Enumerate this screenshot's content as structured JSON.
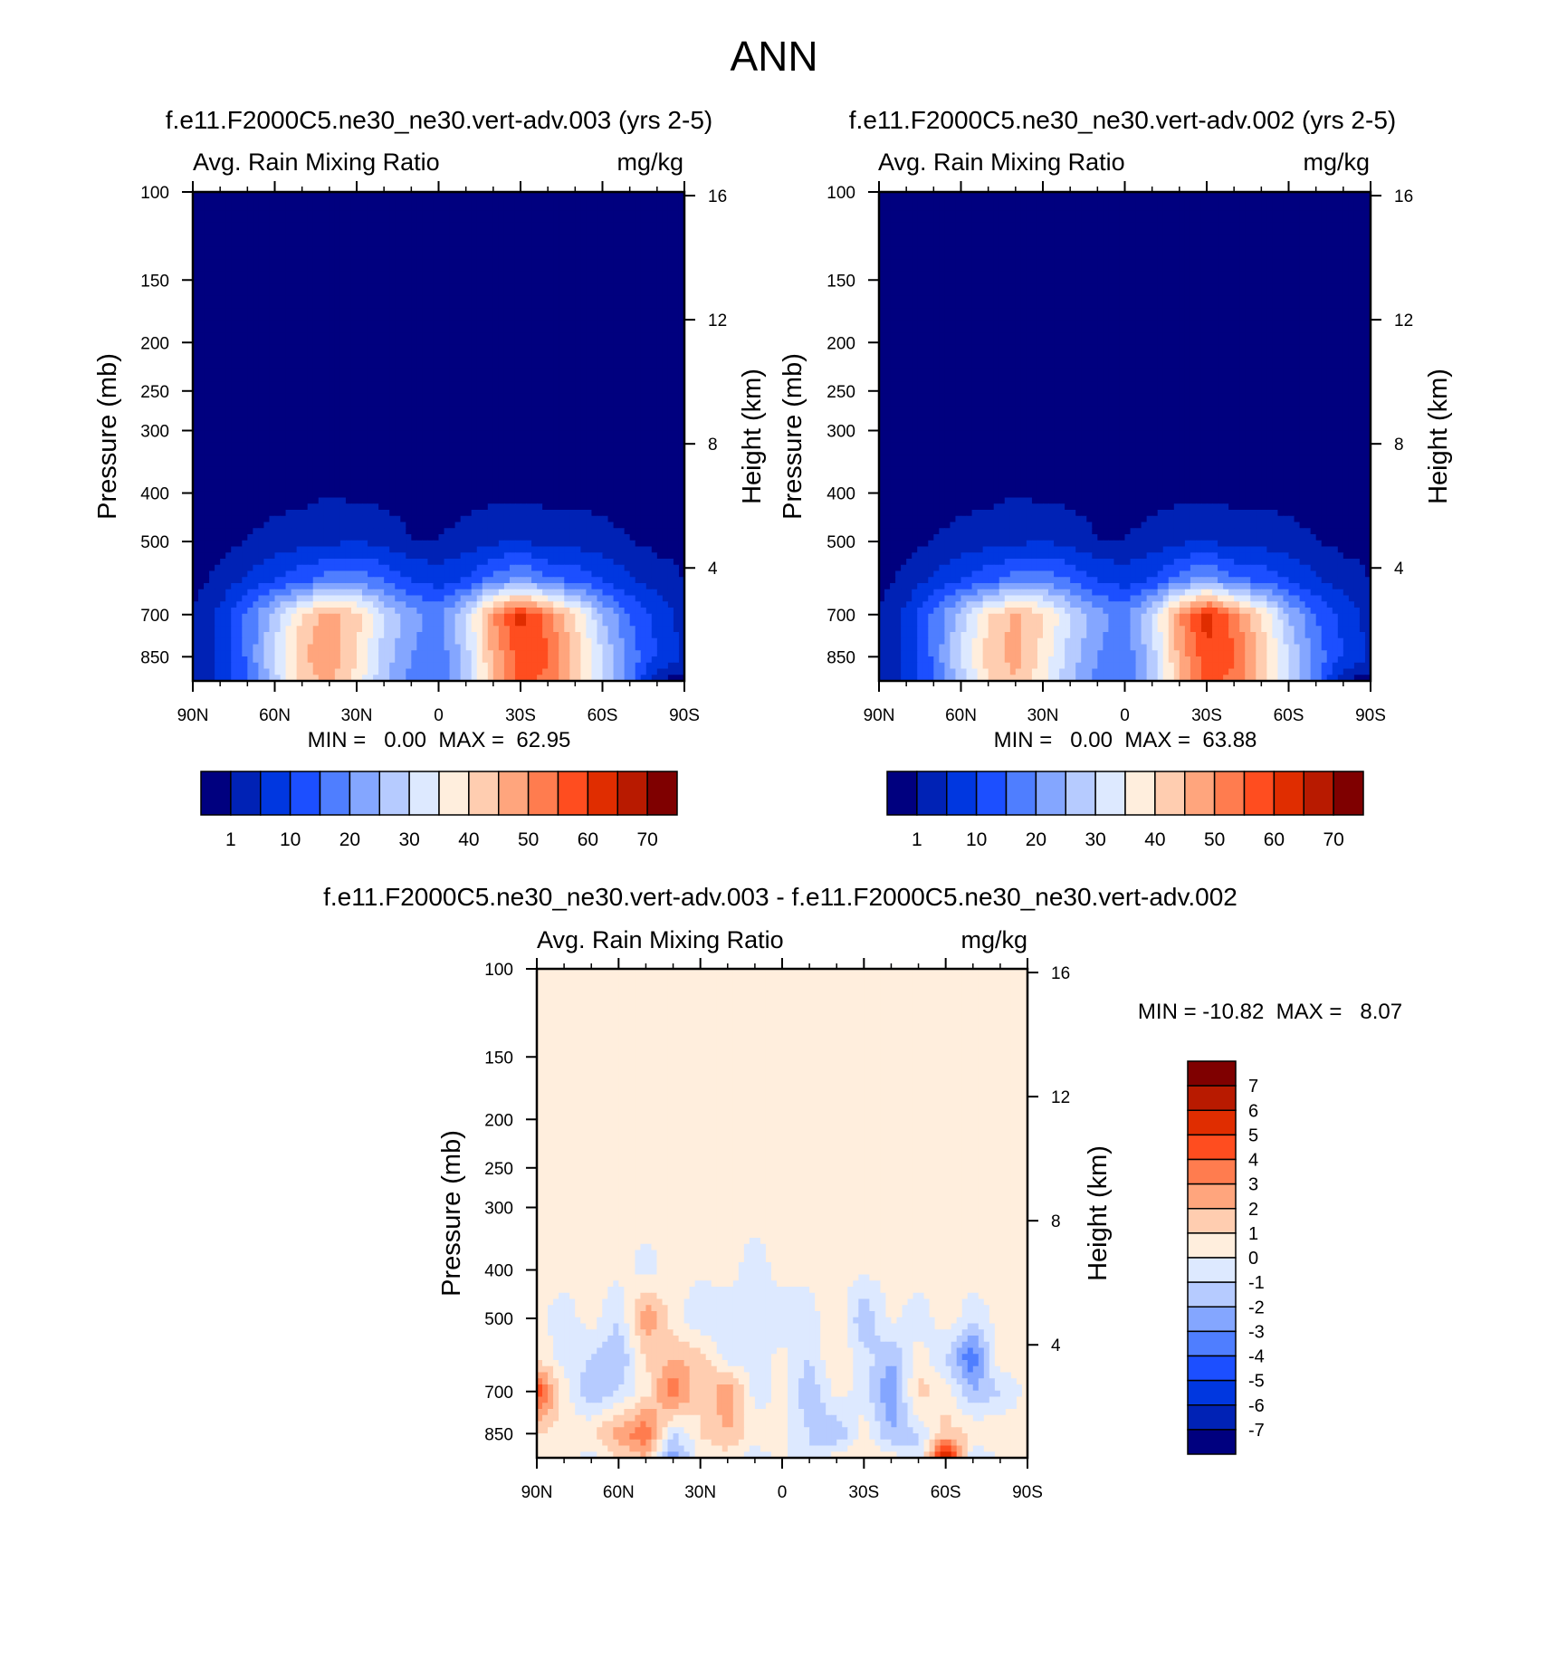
{
  "figure": {
    "title": "ANN"
  },
  "chart_data": [
    {
      "type": "heatmap",
      "title": "f.e11.F2000C5.ne30_ne30.vert-adv.003 (yrs 2-5)",
      "subtitle_left": "Avg. Rain Mixing Ratio",
      "units": "mg/kg",
      "ylabel": "Pressure (mb)",
      "y2label": "Height (km)",
      "x_ticks": [
        "90N",
        "60N",
        "30N",
        "0",
        "30S",
        "60S",
        "90S"
      ],
      "y_ticks": [
        "100",
        "150",
        "200",
        "250",
        "300",
        "400",
        "500",
        "700",
        "850"
      ],
      "y2_ticks": [
        "16",
        "12",
        "8",
        "4"
      ],
      "stats": "MIN =   0.00  MAX =  62.95",
      "colorbar_labels": [
        "1",
        "10",
        "20",
        "30",
        "40",
        "50",
        "60",
        "70"
      ],
      "colorbar_colors": [
        "#00007f",
        "#0022b5",
        "#0037e0",
        "#1c4fff",
        "#4f7eff",
        "#84a6ff",
        "#b6cbff",
        "#dde9ff",
        "#ffeedd",
        "#ffcdb0",
        "#ffa57d",
        "#ff7c4f",
        "#ff4d1f",
        "#e02d00",
        "#b81a00",
        "#7f0000"
      ],
      "lat": [
        -90,
        -80,
        -70,
        -60,
        -50,
        -40,
        -30,
        -20,
        -10,
        0,
        10,
        20,
        30,
        40,
        50,
        60,
        70,
        80,
        90
      ],
      "pressure": [
        100,
        150,
        200,
        250,
        300,
        400,
        500,
        600,
        700,
        850,
        950
      ],
      "values": [
        [
          0,
          0,
          0,
          0,
          0,
          0,
          0,
          0,
          0,
          0,
          0,
          0,
          0,
          0,
          0,
          0,
          0,
          0,
          0
        ],
        [
          0,
          0,
          0,
          0,
          0,
          0,
          0,
          0,
          0,
          0,
          0,
          0,
          0,
          0,
          0,
          0,
          0,
          0,
          0
        ],
        [
          0,
          0,
          0,
          0,
          0,
          0,
          0,
          0,
          0,
          0,
          0,
          0,
          0,
          0,
          0,
          0,
          0,
          0,
          0
        ],
        [
          0,
          0,
          0,
          0,
          0,
          0,
          0,
          0,
          0,
          0,
          0,
          0,
          0,
          0,
          0,
          0,
          0,
          0,
          0
        ],
        [
          0,
          0,
          0,
          0,
          0,
          0,
          0,
          0,
          0,
          0,
          0,
          0,
          0,
          0,
          0,
          0,
          0,
          0,
          0
        ],
        [
          0,
          0,
          0,
          0,
          0,
          0,
          0,
          0,
          0,
          0,
          0,
          0,
          0,
          1,
          0,
          0,
          0,
          0,
          0
        ],
        [
          0,
          0,
          1,
          2,
          3,
          3,
          5,
          4,
          2,
          1,
          1,
          3,
          5,
          4,
          3,
          2,
          1,
          0,
          0
        ],
        [
          1,
          3,
          6,
          10,
          14,
          17,
          22,
          18,
          11,
          8,
          10,
          15,
          19,
          18,
          14,
          10,
          6,
          2,
          0
        ],
        [
          3,
          8,
          15,
          25,
          40,
          52,
          62,
          50,
          30,
          18,
          22,
          30,
          42,
          48,
          40,
          28,
          16,
          6,
          1
        ],
        [
          4,
          10,
          18,
          30,
          44,
          56,
          58,
          46,
          28,
          16,
          20,
          28,
          40,
          50,
          44,
          30,
          16,
          6,
          1
        ],
        [
          0,
          0,
          18,
          30,
          42,
          54,
          56,
          44,
          26,
          15,
          18,
          26,
          38,
          46,
          42,
          28,
          15,
          6,
          1
        ]
      ]
    },
    {
      "type": "heatmap",
      "title": "f.e11.F2000C5.ne30_ne30.vert-adv.002 (yrs 2-5)",
      "subtitle_left": "Avg. Rain Mixing Ratio",
      "units": "mg/kg",
      "ylabel": "Pressure (mb)",
      "y2label": "Height (km)",
      "x_ticks": [
        "90N",
        "60N",
        "30N",
        "0",
        "30S",
        "60S",
        "90S"
      ],
      "y_ticks": [
        "100",
        "150",
        "200",
        "250",
        "300",
        "400",
        "500",
        "700",
        "850"
      ],
      "y2_ticks": [
        "16",
        "12",
        "8",
        "4"
      ],
      "stats": "MIN =   0.00  MAX =  63.88",
      "colorbar_labels": [
        "1",
        "10",
        "20",
        "30",
        "40",
        "50",
        "60",
        "70"
      ],
      "colorbar_colors": [
        "#00007f",
        "#0022b5",
        "#0037e0",
        "#1c4fff",
        "#4f7eff",
        "#84a6ff",
        "#b6cbff",
        "#dde9ff",
        "#ffeedd",
        "#ffcdb0",
        "#ffa57d",
        "#ff7c4f",
        "#ff4d1f",
        "#e02d00",
        "#b81a00",
        "#7f0000"
      ],
      "lat": [
        -90,
        -80,
        -70,
        -60,
        -50,
        -40,
        -30,
        -20,
        -10,
        0,
        10,
        20,
        30,
        40,
        50,
        60,
        70,
        80,
        90
      ],
      "pressure": [
        100,
        150,
        200,
        250,
        300,
        400,
        500,
        600,
        700,
        850,
        950
      ],
      "values": [
        [
          0,
          0,
          0,
          0,
          0,
          0,
          0,
          0,
          0,
          0,
          0,
          0,
          0,
          0,
          0,
          0,
          0,
          0,
          0
        ],
        [
          0,
          0,
          0,
          0,
          0,
          0,
          0,
          0,
          0,
          0,
          0,
          0,
          0,
          0,
          0,
          0,
          0,
          0,
          0
        ],
        [
          0,
          0,
          0,
          0,
          0,
          0,
          0,
          0,
          0,
          0,
          0,
          0,
          0,
          0,
          0,
          0,
          0,
          0,
          0
        ],
        [
          0,
          0,
          0,
          0,
          0,
          0,
          0,
          0,
          0,
          0,
          0,
          0,
          0,
          0,
          0,
          0,
          0,
          0,
          0
        ],
        [
          0,
          0,
          0,
          0,
          0,
          0,
          0,
          0,
          0,
          0,
          0,
          0,
          0,
          0,
          0,
          0,
          0,
          0,
          0
        ],
        [
          0,
          0,
          0,
          0,
          0,
          0,
          0,
          0,
          0,
          0,
          0,
          0,
          0,
          1,
          0,
          0,
          0,
          0,
          0
        ],
        [
          0,
          0,
          1,
          2,
          3,
          3,
          5,
          4,
          2,
          1,
          1,
          3,
          5,
          4,
          3,
          2,
          1,
          0,
          0
        ],
        [
          1,
          3,
          6,
          10,
          14,
          17,
          23,
          18,
          11,
          8,
          10,
          15,
          19,
          18,
          14,
          10,
          6,
          2,
          0
        ],
        [
          3,
          8,
          15,
          25,
          40,
          52,
          63,
          50,
          30,
          18,
          22,
          30,
          41,
          46,
          40,
          28,
          16,
          6,
          1
        ],
        [
          4,
          10,
          18,
          30,
          44,
          56,
          59,
          46,
          28,
          16,
          20,
          28,
          38,
          48,
          42,
          30,
          16,
          6,
          1
        ],
        [
          0,
          0,
          18,
          30,
          42,
          54,
          56,
          44,
          26,
          15,
          18,
          26,
          36,
          44,
          40,
          28,
          15,
          6,
          1
        ]
      ]
    },
    {
      "type": "heatmap",
      "title": "f.e11.F2000C5.ne30_ne30.vert-adv.003 - f.e11.F2000C5.ne30_ne30.vert-adv.002",
      "subtitle_left": "Avg. Rain Mixing Ratio",
      "units": "mg/kg",
      "ylabel": "Pressure (mb)",
      "y2label": "Height (km)",
      "x_ticks": [
        "90N",
        "60N",
        "30N",
        "0",
        "30S",
        "60S",
        "90S"
      ],
      "y_ticks": [
        "100",
        "150",
        "200",
        "250",
        "300",
        "400",
        "500",
        "700",
        "850"
      ],
      "y2_ticks": [
        "16",
        "12",
        "8",
        "4"
      ],
      "stats": "MIN = -10.82  MAX =   8.07",
      "colorbar_labels": [
        "7",
        "6",
        "5",
        "4",
        "3",
        "2",
        "1",
        "0",
        "-1",
        "-2",
        "-3",
        "-4",
        "-5",
        "-6",
        "-7"
      ],
      "colorbar_colors": [
        "#7f0000",
        "#b81a00",
        "#e02d00",
        "#ff4d1f",
        "#ff7c4f",
        "#ffa57d",
        "#ffcdb0",
        "#ffeedd",
        "#dde9ff",
        "#b6cbff",
        "#84a6ff",
        "#4f7eff",
        "#1c4fff",
        "#0037e0",
        "#0022b5",
        "#00007f"
      ],
      "lat": [
        -90,
        -80,
        -70,
        -60,
        -50,
        -40,
        -30,
        -20,
        -10,
        0,
        10,
        20,
        30,
        40,
        50,
        60,
        70,
        80,
        90
      ],
      "pressure": [
        100,
        150,
        200,
        250,
        300,
        400,
        500,
        600,
        700,
        850,
        950
      ],
      "values": [
        [
          0.3,
          0.3,
          0.3,
          0.3,
          0.3,
          0.3,
          0.3,
          0.3,
          0.3,
          0.3,
          0.3,
          0.3,
          0.3,
          0.3,
          0.3,
          0.3,
          0.3,
          0.3,
          0.3
        ],
        [
          0.3,
          0.3,
          0.3,
          0.3,
          0.3,
          0.3,
          0.3,
          0.3,
          0.3,
          0.3,
          0.3,
          0.3,
          0.3,
          0.3,
          0.3,
          0.3,
          0.3,
          0.3,
          0.3
        ],
        [
          0.3,
          0.3,
          0.3,
          0.3,
          0.3,
          0.3,
          0.3,
          0.3,
          0.3,
          0.3,
          0.3,
          0.3,
          0.3,
          0.3,
          0.3,
          0.3,
          0.3,
          0.3,
          0.3
        ],
        [
          0.3,
          0.3,
          0.3,
          0.3,
          0.3,
          0.3,
          0.3,
          0.3,
          0.3,
          0.3,
          0.3,
          0.3,
          0.3,
          0.3,
          0.3,
          0.3,
          0.3,
          0.3,
          0.3
        ],
        [
          0.3,
          0.3,
          0.3,
          0.3,
          0.3,
          0.3,
          0.3,
          0.3,
          0.3,
          0.3,
          0.3,
          0.3,
          0.3,
          0.3,
          0.3,
          0.3,
          0.3,
          0.3,
          0.3
        ],
        [
          0.3,
          0.3,
          0.3,
          0.3,
          0.3,
          0.3,
          0.3,
          0.3,
          0.3,
          0.3,
          -0.4,
          0.3,
          0.3,
          0.3,
          -0.3,
          0.3,
          0.3,
          0.3,
          0.3
        ],
        [
          0.3,
          0.3,
          -0.5,
          0.5,
          -0.5,
          0.3,
          -2,
          1,
          -0.5,
          -0.5,
          -0.3,
          -0.5,
          -1,
          0.5,
          3,
          -1,
          0.5,
          -0.5,
          0.3
        ],
        [
          0.3,
          0.8,
          -4,
          -1,
          0.5,
          -2,
          -0.5,
          1,
          -1,
          0.3,
          -0.5,
          -0.5,
          1.5,
          2,
          1,
          -2,
          -1,
          -0.5,
          0.8
        ],
        [
          0.3,
          -1,
          -2,
          0.5,
          1.5,
          -3,
          -0.5,
          0.5,
          -2,
          0.3,
          -0.5,
          3,
          1,
          4,
          0.5,
          -1,
          -2,
          0.5,
          5
        ],
        [
          0.3,
          0.8,
          1,
          1.5,
          -1,
          -2,
          0.5,
          -2,
          -1,
          0.3,
          0.5,
          2,
          1,
          -1,
          4,
          2.5,
          1,
          0.5,
          1
        ],
        [
          0.3,
          0,
          -1,
          7,
          -1,
          0.5,
          0.5,
          0.5,
          -1,
          0.3,
          -0.5,
          0.5,
          0.3,
          -3,
          2,
          1,
          -0.5,
          0.5,
          0.3
        ]
      ]
    }
  ]
}
